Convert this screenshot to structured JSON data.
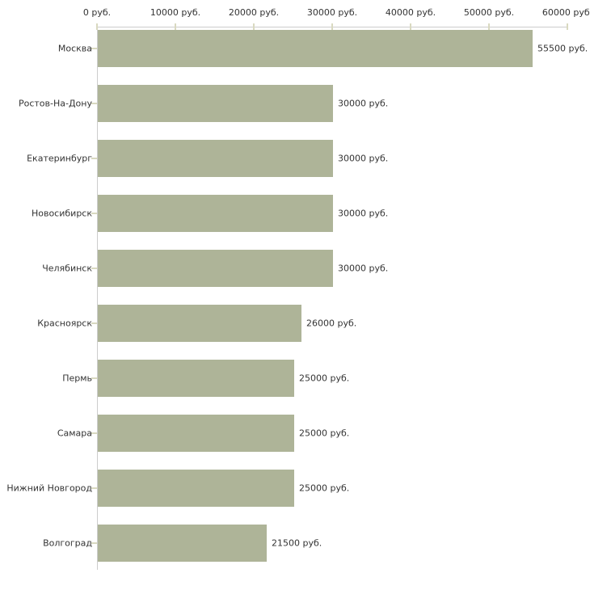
{
  "chart_data": {
    "type": "bar",
    "orientation": "horizontal",
    "title": "",
    "xlabel": "",
    "ylabel": "",
    "grid": false,
    "legend": false,
    "categories": [
      "Москва",
      "Ростов-На-Дону",
      "Екатеринбург",
      "Новосибирск",
      "Челябинск",
      "Красноярск",
      "Пермь",
      "Самара",
      "Нижний Новгород",
      "Волгоград"
    ],
    "values": [
      55500,
      30000,
      30000,
      30000,
      30000,
      26000,
      25000,
      25000,
      25000,
      21500
    ],
    "value_labels": [
      "55500 руб.",
      "30000 руб.",
      "30000 руб.",
      "30000 руб.",
      "30000 руб.",
      "26000 руб.",
      "25000 руб.",
      "25000 руб.",
      "25000 руб.",
      "21500 руб."
    ],
    "x_axis": {
      "position": "top",
      "range": [
        0,
        60000
      ],
      "ticks": [
        0,
        10000,
        20000,
        30000,
        40000,
        50000,
        60000
      ],
      "tick_labels": [
        "0 руб.",
        "10000 руб.",
        "20000 руб.",
        "30000 руб.",
        "40000 руб.",
        "50000 руб.",
        "60000 руб."
      ]
    },
    "colors": {
      "bar": "#aeb498",
      "axis_line": "#cccccc",
      "tick_mark": "#d9d9c0",
      "text": "#333333",
      "background": "#ffffff"
    }
  }
}
